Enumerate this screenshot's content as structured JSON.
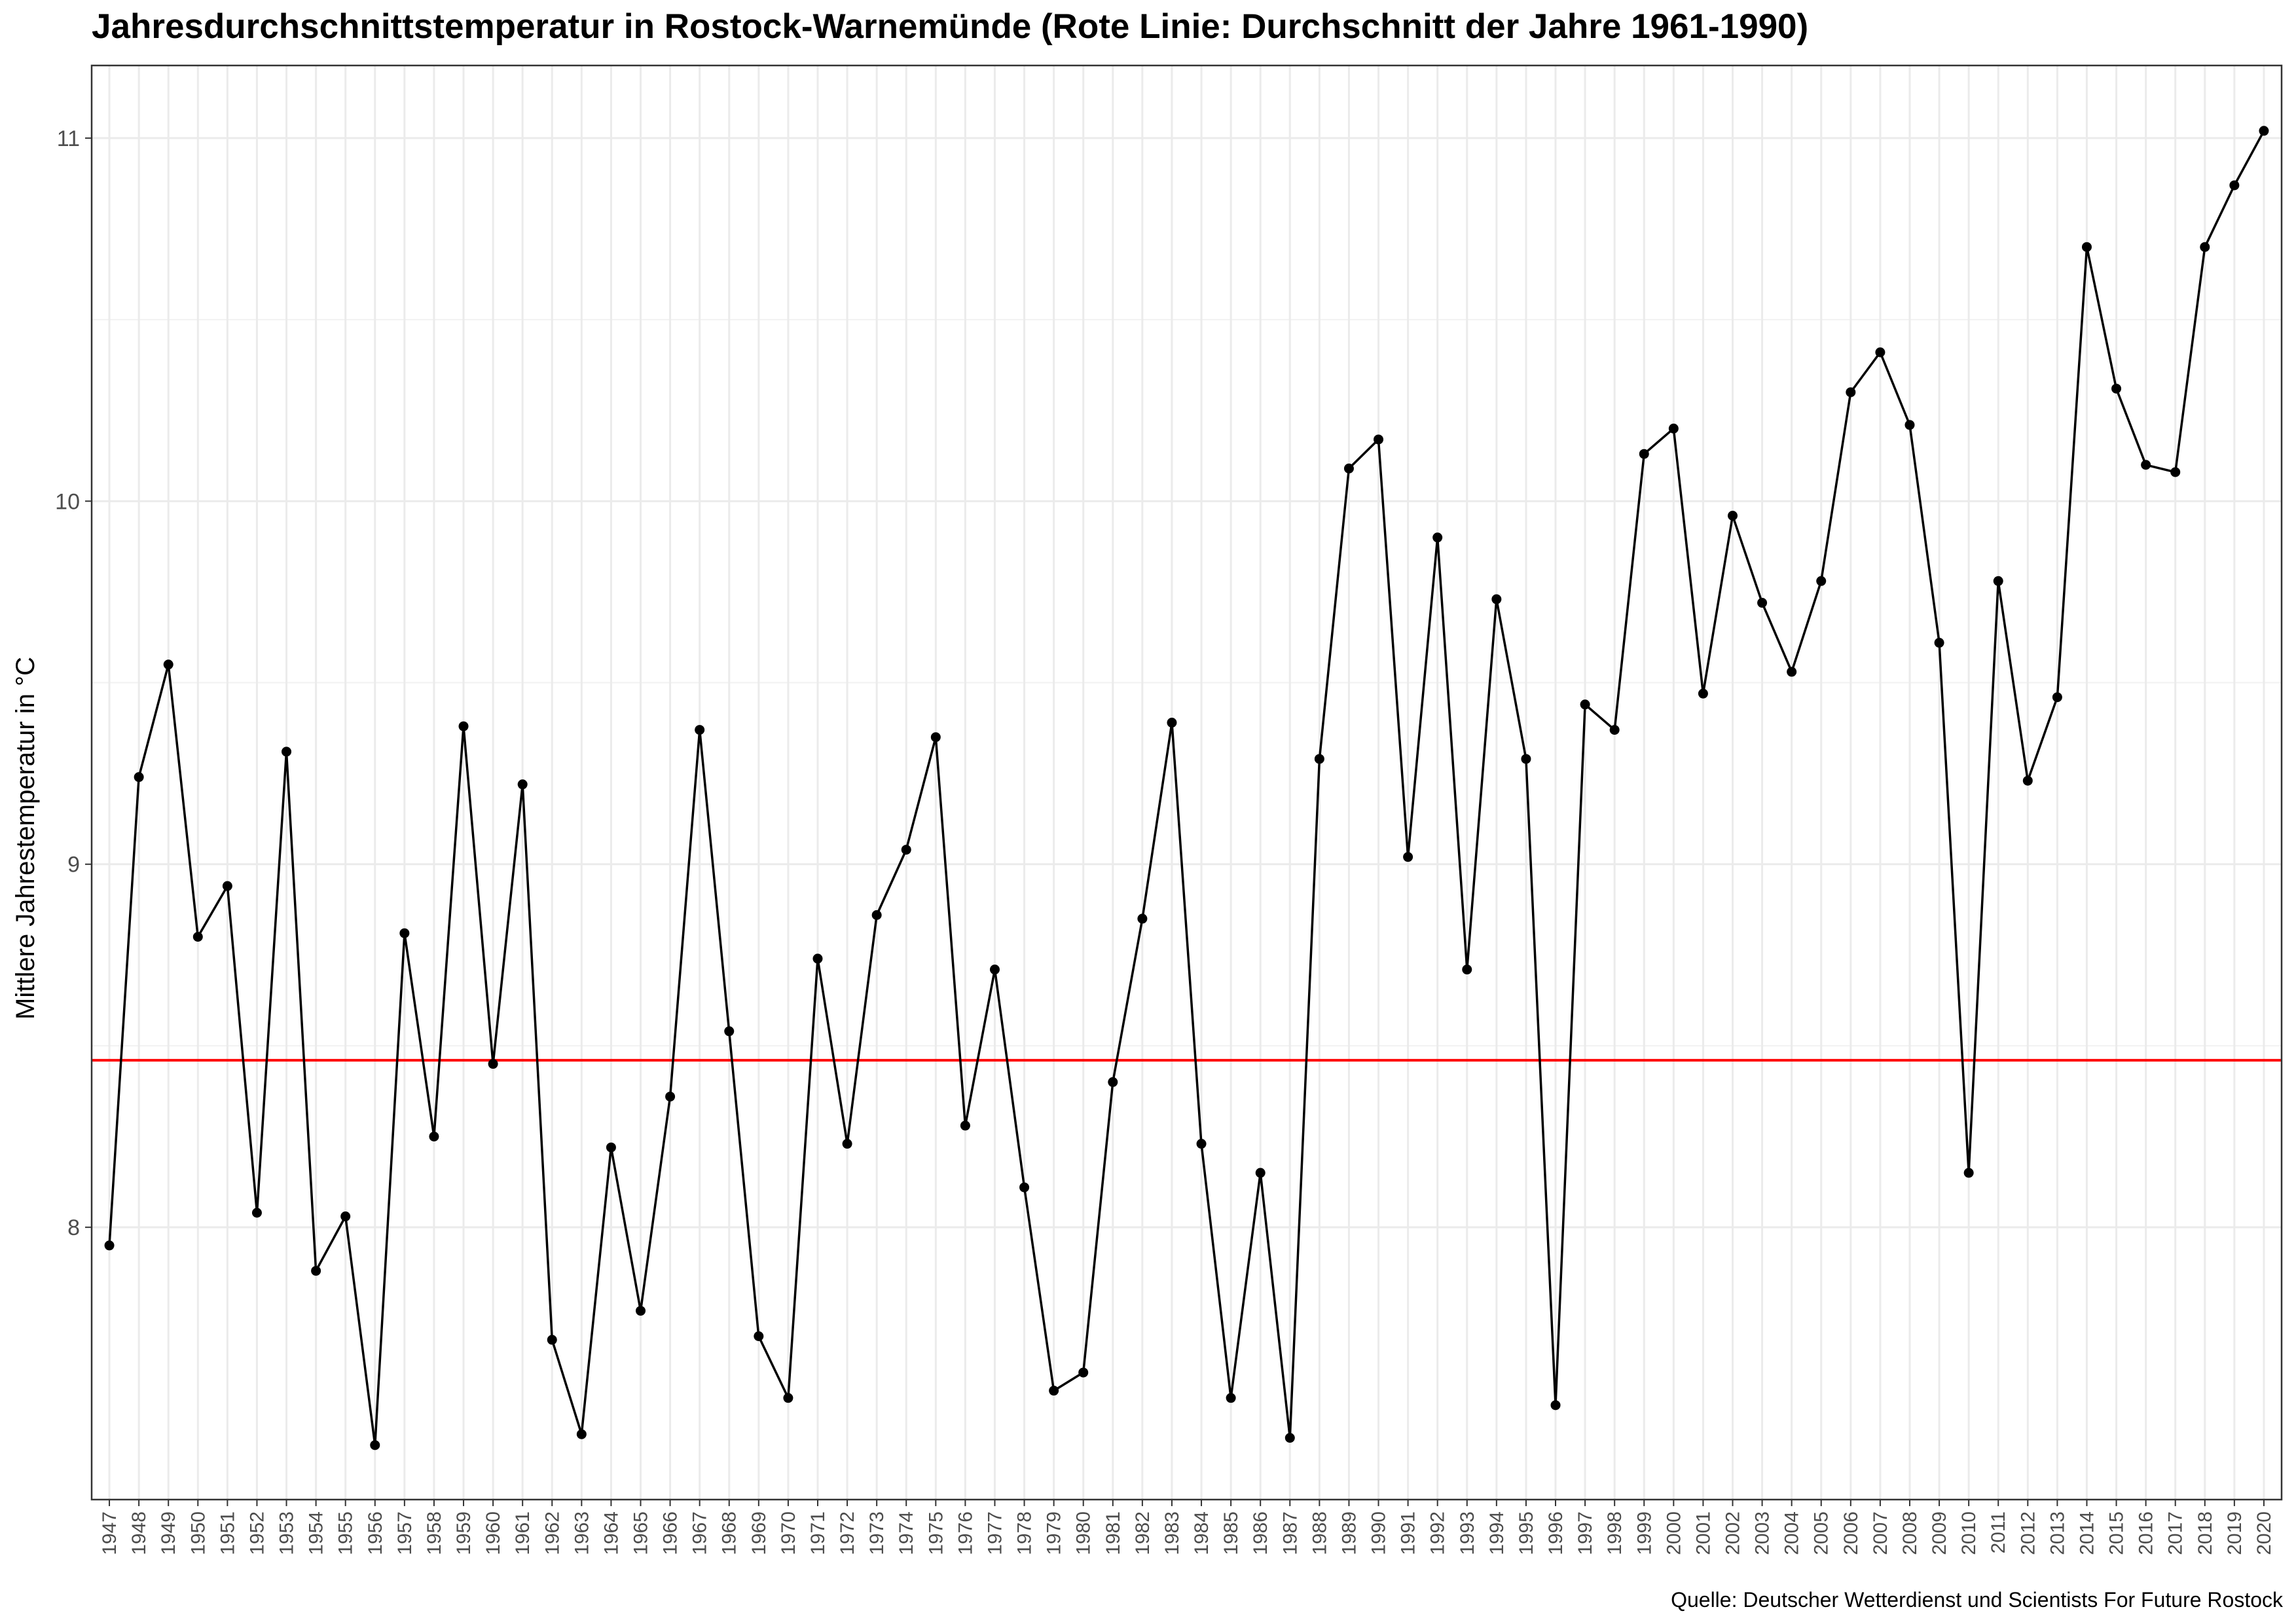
{
  "chart_data": {
    "type": "line",
    "title": "Jahresdurchschnittstemperatur in Rostock-Warnemünde (Rote Linie: Durchschnitt der Jahre 1961-1990)",
    "xlabel": "",
    "ylabel": "Mittlere Jahrestemperatur in °C",
    "caption": "Quelle: Deutscher Wetterdienst und Scientists For Future Rostock",
    "ylim": [
      7.25,
      11.2
    ],
    "yticks": [
      8,
      9,
      10,
      11
    ],
    "reference_line": {
      "value": 8.46,
      "color": "#ff0000"
    },
    "series_color": "#000000",
    "grid": true,
    "x": [
      1947,
      1948,
      1949,
      1950,
      1951,
      1952,
      1953,
      1954,
      1955,
      1956,
      1957,
      1958,
      1959,
      1960,
      1961,
      1962,
      1963,
      1964,
      1965,
      1966,
      1967,
      1968,
      1969,
      1970,
      1971,
      1972,
      1973,
      1974,
      1975,
      1976,
      1977,
      1978,
      1979,
      1980,
      1981,
      1982,
      1983,
      1984,
      1985,
      1986,
      1987,
      1988,
      1989,
      1990,
      1991,
      1992,
      1993,
      1994,
      1995,
      1996,
      1997,
      1998,
      1999,
      2000,
      2001,
      2002,
      2003,
      2004,
      2005,
      2006,
      2007,
      2008,
      2009,
      2010,
      2011,
      2012,
      2013,
      2014,
      2015,
      2016,
      2017,
      2018,
      2019,
      2020
    ],
    "values": [
      7.95,
      9.24,
      9.55,
      8.8,
      8.94,
      8.04,
      9.31,
      7.88,
      8.03,
      7.4,
      8.81,
      8.25,
      9.38,
      8.45,
      9.22,
      7.69,
      7.43,
      8.22,
      7.77,
      8.36,
      9.37,
      8.54,
      7.7,
      7.53,
      8.74,
      8.23,
      8.86,
      9.04,
      9.35,
      8.28,
      8.71,
      8.11,
      7.55,
      7.6,
      8.4,
      8.85,
      9.39,
      8.23,
      7.53,
      8.15,
      7.42,
      9.29,
      10.09,
      10.17,
      9.02,
      9.9,
      8.71,
      9.73,
      9.29,
      7.51,
      9.44,
      9.37,
      10.13,
      10.2,
      9.47,
      9.96,
      9.72,
      9.53,
      9.78,
      10.3,
      10.41,
      10.21,
      9.61,
      8.15,
      9.78,
      9.23,
      9.46,
      10.7,
      10.31,
      10.1,
      10.08,
      10.7,
      10.87,
      11.02
    ]
  }
}
